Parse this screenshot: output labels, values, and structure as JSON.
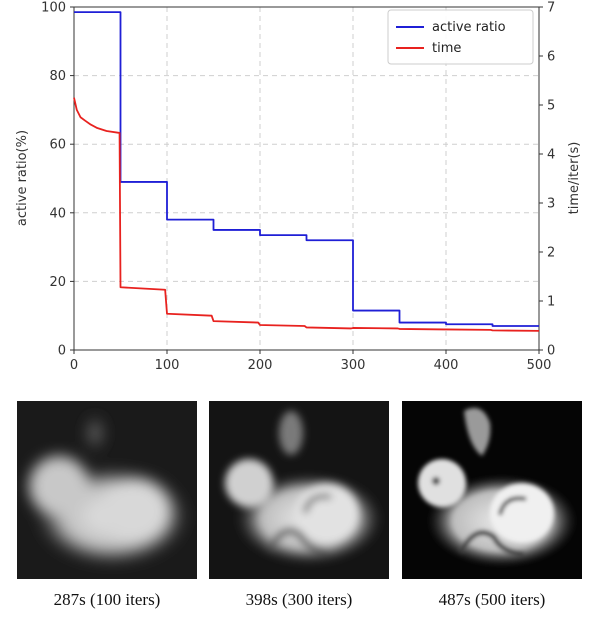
{
  "chart_data": {
    "type": "line",
    "xlim": [
      0,
      500
    ],
    "x_ticks": [
      0,
      100,
      200,
      300,
      400,
      500
    ],
    "ylabel": "active ratio(%)",
    "ylim": [
      0,
      100
    ],
    "y_ticks": [
      0,
      20,
      40,
      60,
      80,
      100
    ],
    "y2label": "time/iter(s)",
    "y2lim": [
      0,
      7
    ],
    "y2_ticks": [
      0,
      1,
      2,
      3,
      4,
      5,
      6,
      7
    ],
    "grid": true,
    "legend_position": "top-right",
    "series": [
      {
        "name": "active ratio",
        "color": "#1f1fd6",
        "axis": "left",
        "points": [
          [
            0,
            98.5
          ],
          [
            50,
            98.5
          ],
          [
            50,
            49
          ],
          [
            100,
            49
          ],
          [
            100,
            38
          ],
          [
            150,
            38
          ],
          [
            150,
            35
          ],
          [
            200,
            35
          ],
          [
            200,
            33.5
          ],
          [
            250,
            33.5
          ],
          [
            250,
            32
          ],
          [
            300,
            32
          ],
          [
            300,
            11.5
          ],
          [
            350,
            11.5
          ],
          [
            350,
            8
          ],
          [
            400,
            8
          ],
          [
            400,
            7.5
          ],
          [
            450,
            7.5
          ],
          [
            450,
            7
          ],
          [
            500,
            7
          ]
        ]
      },
      {
        "name": "time",
        "color": "#e8221f",
        "axis": "right",
        "points": [
          [
            0,
            5.15
          ],
          [
            3,
            4.9
          ],
          [
            7,
            4.75
          ],
          [
            12,
            4.68
          ],
          [
            18,
            4.6
          ],
          [
            25,
            4.53
          ],
          [
            35,
            4.47
          ],
          [
            49,
            4.43
          ],
          [
            50,
            1.28
          ],
          [
            98,
            1.23
          ],
          [
            100,
            0.74
          ],
          [
            148,
            0.7
          ],
          [
            150,
            0.59
          ],
          [
            198,
            0.56
          ],
          [
            200,
            0.51
          ],
          [
            248,
            0.49
          ],
          [
            250,
            0.46
          ],
          [
            298,
            0.44
          ],
          [
            300,
            0.45
          ],
          [
            348,
            0.44
          ],
          [
            350,
            0.43
          ],
          [
            398,
            0.42
          ],
          [
            400,
            0.42
          ],
          [
            448,
            0.41
          ],
          [
            450,
            0.4
          ],
          [
            500,
            0.39
          ]
        ]
      }
    ]
  },
  "renders": [
    {
      "caption": "287s (100 iters)",
      "quality": "low"
    },
    {
      "caption": "398s (300 iters)",
      "quality": "medium"
    },
    {
      "caption": "487s (500 iters)",
      "quality": "high"
    }
  ]
}
